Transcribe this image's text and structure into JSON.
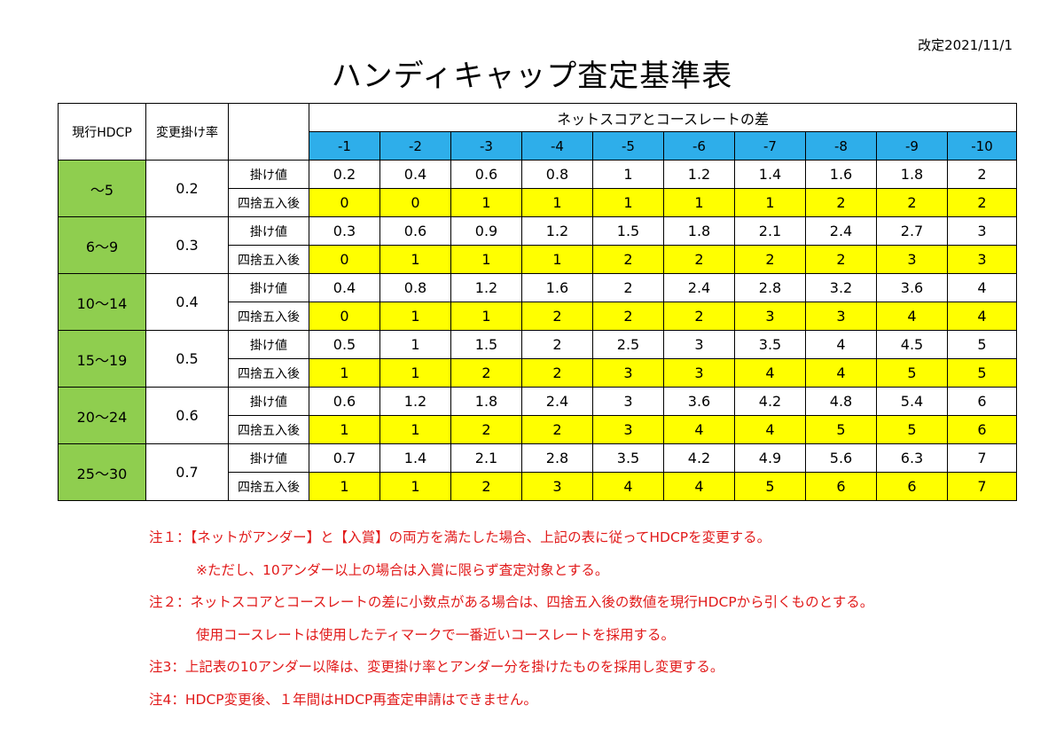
{
  "revision": "改定2021/11/1",
  "title": "ハンディキャップ査定基準表",
  "table": {
    "col_current_hdcp": "現行HDCP",
    "col_rate": "変更掛け率",
    "group_header": "ネットスコアとコースレートの差",
    "diffs": [
      "-1",
      "-2",
      "-3",
      "-4",
      "-5",
      "-6",
      "-7",
      "-8",
      "-9",
      "-10"
    ],
    "row_label_kake": "掛け値",
    "row_label_rounded": "四捨五入後",
    "bands": [
      {
        "range": "～5",
        "rate": "0.2",
        "kake": [
          "0.2",
          "0.4",
          "0.6",
          "0.8",
          "1",
          "1.2",
          "1.4",
          "1.6",
          "1.8",
          "2"
        ],
        "rounded": [
          "0",
          "0",
          "1",
          "1",
          "1",
          "1",
          "1",
          "2",
          "2",
          "2"
        ]
      },
      {
        "range": "6～9",
        "rate": "0.3",
        "kake": [
          "0.3",
          "0.6",
          "0.9",
          "1.2",
          "1.5",
          "1.8",
          "2.1",
          "2.4",
          "2.7",
          "3"
        ],
        "rounded": [
          "0",
          "1",
          "1",
          "1",
          "2",
          "2",
          "2",
          "2",
          "3",
          "3"
        ]
      },
      {
        "range": "10～14",
        "rate": "0.4",
        "kake": [
          "0.4",
          "0.8",
          "1.2",
          "1.6",
          "2",
          "2.4",
          "2.8",
          "3.2",
          "3.6",
          "4"
        ],
        "rounded": [
          "0",
          "1",
          "1",
          "2",
          "2",
          "2",
          "3",
          "3",
          "4",
          "4"
        ]
      },
      {
        "range": "15～19",
        "rate": "0.5",
        "kake": [
          "0.5",
          "1",
          "1.5",
          "2",
          "2.5",
          "3",
          "3.5",
          "4",
          "4.5",
          "5"
        ],
        "rounded": [
          "1",
          "1",
          "2",
          "2",
          "3",
          "3",
          "4",
          "4",
          "5",
          "5"
        ]
      },
      {
        "range": "20～24",
        "rate": "0.6",
        "kake": [
          "0.6",
          "1.2",
          "1.8",
          "2.4",
          "3",
          "3.6",
          "4.2",
          "4.8",
          "5.4",
          "6"
        ],
        "rounded": [
          "1",
          "1",
          "2",
          "2",
          "3",
          "4",
          "4",
          "5",
          "5",
          "6"
        ]
      },
      {
        "range": "25～30",
        "rate": "0.7",
        "kake": [
          "0.7",
          "1.4",
          "2.1",
          "2.8",
          "3.5",
          "4.2",
          "4.9",
          "5.6",
          "6.3",
          "7"
        ],
        "rounded": [
          "1",
          "1",
          "2",
          "3",
          "4",
          "4",
          "5",
          "6",
          "6",
          "7"
        ]
      }
    ]
  },
  "notes": [
    {
      "text": "注１：【ネットがアンダー】と【入賞】の両方を満たした場合、上記の表に従ってHDCPを変更する。",
      "indent": false
    },
    {
      "text": "※ただし、10アンダー以上の場合は入賞に限らず査定対象とする。",
      "indent": true
    },
    {
      "text": "注２：ネットスコアとコースレートの差に小数点がある場合は、四捨五入後の数値を現行HDCPから引くものとする。",
      "indent": false
    },
    {
      "text": "使用コースレートは使用したティマークで一番近いコースレートを採用する。",
      "indent": true
    },
    {
      "text": "注3：上記表の10アンダー以降は、変更掛け率とアンダー分を掛けたものを採用し変更する。",
      "indent": false
    },
    {
      "text": "注4：HDCP変更後、１年間はHDCP再査定申請はできません。",
      "indent": false
    }
  ],
  "colors": {
    "band": "#8fce4f",
    "diff_header": "#2eaeea",
    "rounded_row": "#ffff00",
    "notes": "#e11a1a"
  }
}
